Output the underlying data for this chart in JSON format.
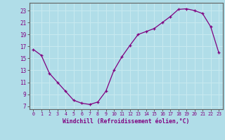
{
  "x": [
    0,
    1,
    2,
    3,
    4,
    5,
    6,
    7,
    8,
    9,
    10,
    11,
    12,
    13,
    14,
    15,
    16,
    17,
    18,
    19,
    20,
    21,
    22,
    23
  ],
  "y": [
    16.5,
    15.5,
    12.5,
    11.0,
    9.5,
    8.0,
    7.5,
    7.3,
    7.7,
    9.5,
    13.0,
    15.3,
    17.2,
    19.0,
    19.5,
    20.0,
    21.0,
    22.0,
    23.2,
    23.3,
    23.0,
    22.5,
    20.3,
    16.0
  ],
  "line_color": "#800080",
  "marker": "+",
  "bg_color": "#b0dde8",
  "grid_color": "#c8eaf0",
  "xlabel": "Windchill (Refroidissement éolien,°C)",
  "ylabel_ticks": [
    7,
    9,
    11,
    13,
    15,
    17,
    19,
    21,
    23
  ],
  "xlim": [
    -0.5,
    23.5
  ],
  "ylim": [
    6.5,
    24.3
  ],
  "font_color": "#800080",
  "font_family": "monospace"
}
